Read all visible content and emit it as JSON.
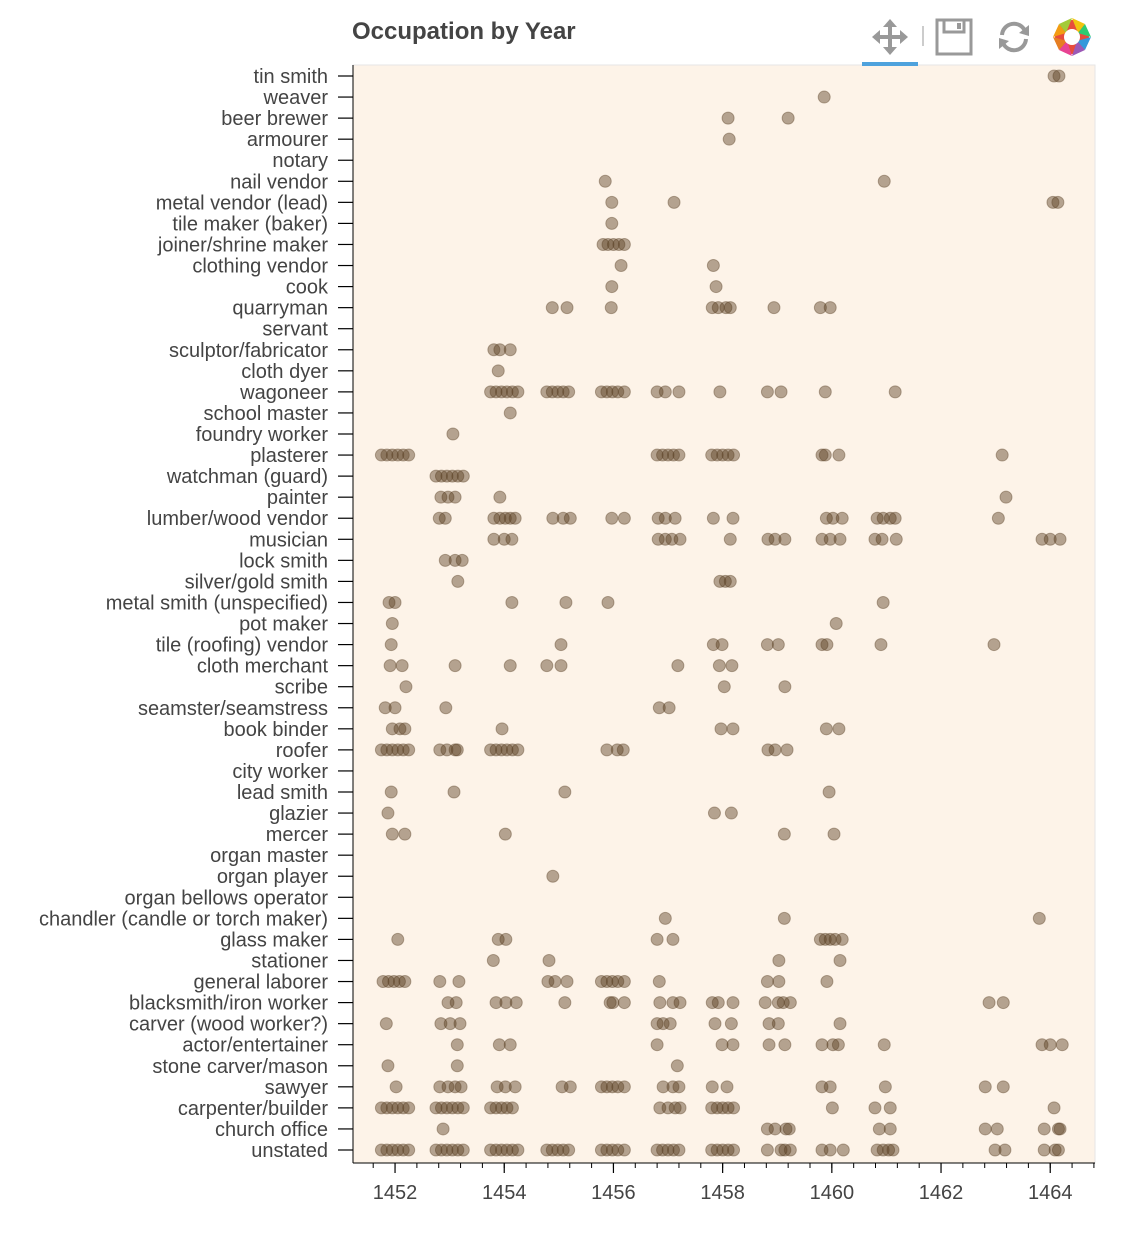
{
  "chart_data": {
    "type": "scatter",
    "title": "Occupation by Year",
    "xlabel": "",
    "ylabel": "",
    "xlim": [
      1451.23,
      1464.82
    ],
    "xticks": [
      1452,
      1454,
      1456,
      1458,
      1460,
      1462,
      1464
    ],
    "grid": false,
    "background_color": "#fdf3e8",
    "point_color": "#5a4024",
    "point_alpha": 0.45,
    "categories": [
      "tin smith",
      "weaver",
      "beer brewer",
      "armourer",
      "notary",
      "nail vendor",
      "metal vendor (lead)",
      "tile maker (baker)",
      "joiner/shrine maker",
      "clothing vendor",
      "cook",
      "quarryman",
      "servant",
      "sculptor/fabricator",
      "cloth dyer",
      "wagoneer",
      "school master",
      "foundry worker",
      "plasterer",
      "watchman (guard)",
      "painter",
      "lumber/wood vendor",
      "musician",
      "lock smith",
      "silver/gold smith",
      "metal smith (unspecified)",
      "pot maker",
      "tile (roofing) vendor",
      "cloth merchant",
      "scribe",
      "seamster/seamstress",
      "book binder",
      "roofer",
      "city worker",
      "lead smith",
      "glazier",
      "mercer",
      "organ master",
      "organ player",
      "organ bellows operator",
      "chandler (candle or torch maker)",
      "glass maker",
      "stationer",
      "general laborer",
      "blacksmith/iron worker",
      "carver (wood worker?)",
      "actor/entertainer",
      "stone carver/mason",
      "sawyer",
      "carpenter/builder",
      "church office",
      "unstated"
    ],
    "points": {
      "tin smith": [
        1464.07,
        1464.16
      ],
      "weaver": [
        1459.86
      ],
      "beer brewer": [
        1458.1,
        1459.2
      ],
      "armourer": [
        1458.12
      ],
      "notary": [],
      "nail vendor": [
        1455.85,
        1460.96
      ],
      "metal vendor (lead)": [
        1455.97,
        1457.11,
        1464.05,
        1464.14
      ],
      "tile maker (baker)": [
        1455.97
      ],
      "joiner/shrine maker": [
        1455.81,
        1455.9,
        1456.0,
        1456.1,
        1456.2
      ],
      "clothing vendor": [
        1456.14,
        1457.83
      ],
      "cook": [
        1455.97,
        1457.88
      ],
      "quarryman": [
        1454.88,
        1455.15,
        1455.96,
        1457.81,
        1457.92,
        1458.06,
        1458.14,
        1458.94,
        1459.79,
        1459.97
      ],
      "servant": [],
      "sculptor/fabricator": [
        1453.81,
        1453.92,
        1454.11
      ],
      "cloth dyer": [
        1453.89
      ],
      "wagoneer": [
        1453.75,
        1453.85,
        1453.95,
        1454.05,
        1454.15,
        1454.25,
        1454.78,
        1454.88,
        1454.98,
        1455.08,
        1455.18,
        1455.78,
        1455.88,
        1455.98,
        1456.08,
        1456.2,
        1456.8,
        1456.95,
        1457.2,
        1457.95,
        1458.82,
        1459.07,
        1459.88,
        1461.16
      ],
      "school master": [
        1454.11
      ],
      "foundry worker": [
        1453.06
      ],
      "plasterer": [
        1451.75,
        1451.85,
        1451.95,
        1452.05,
        1452.15,
        1452.25,
        1456.8,
        1456.9,
        1457.0,
        1457.1,
        1457.2,
        1457.8,
        1457.9,
        1458.0,
        1458.1,
        1458.2,
        1459.82,
        1459.88,
        1460.13,
        1463.12
      ],
      "watchman (guard)": [
        1452.75,
        1452.85,
        1452.95,
        1453.05,
        1453.15,
        1453.25
      ],
      "painter": [
        1452.84,
        1452.97,
        1453.1,
        1453.92,
        1463.19
      ],
      "lumber/wood vendor": [
        1452.81,
        1452.92,
        1453.81,
        1453.92,
        1454.02,
        1454.11,
        1454.2,
        1454.89,
        1455.08,
        1455.21,
        1455.97,
        1456.2,
        1456.82,
        1456.95,
        1457.13,
        1457.83,
        1458.19,
        1459.9,
        1460.02,
        1460.19,
        1460.83,
        1460.94,
        1461.07,
        1461.16,
        1463.05
      ],
      "musician": [
        1453.81,
        1454.0,
        1454.14,
        1456.82,
        1456.95,
        1457.07,
        1457.22,
        1458.14,
        1458.83,
        1458.96,
        1459.14,
        1459.82,
        1459.97,
        1460.15,
        1460.79,
        1460.92,
        1461.18,
        1463.85,
        1464.0,
        1464.18
      ],
      "lock smith": [
        1452.92,
        1453.1,
        1453.23
      ],
      "silver/gold smith": [
        1453.15,
        1457.95,
        1458.05,
        1458.14
      ],
      "metal smith (unspecified)": [
        1451.89,
        1452.0,
        1454.14,
        1455.13,
        1455.9,
        1460.94
      ],
      "pot maker": [
        1451.95,
        1460.08
      ],
      "tile (roofing) vendor": [
        1451.93,
        1455.04,
        1457.83,
        1457.99,
        1458.82,
        1459.02,
        1459.82,
        1459.91,
        1460.9,
        1462.97
      ],
      "cloth merchant": [
        1451.91,
        1452.13,
        1453.1,
        1454.11,
        1454.78,
        1455.04,
        1457.18,
        1457.94,
        1458.17
      ],
      "scribe": [
        1452.2,
        1458.03,
        1459.14
      ],
      "seamster/seamstress": [
        1451.82,
        1452.0,
        1452.93,
        1456.84,
        1457.02
      ],
      "book binder": [
        1451.95,
        1452.09,
        1452.18,
        1453.96,
        1457.97,
        1458.19,
        1459.9,
        1460.13
      ],
      "roofer": [
        1451.75,
        1451.85,
        1451.95,
        1452.05,
        1452.15,
        1452.25,
        1452.82,
        1452.95,
        1453.1,
        1453.14,
        1453.75,
        1453.85,
        1453.95,
        1454.05,
        1454.15,
        1454.25,
        1455.88,
        1456.07,
        1456.18,
        1458.83,
        1458.96,
        1459.18
      ],
      "city worker": [],
      "lead smith": [
        1451.93,
        1453.08,
        1455.11,
        1459.95
      ],
      "glazier": [
        1451.87,
        1457.85,
        1458.16
      ],
      "mercer": [
        1451.95,
        1452.18,
        1454.02,
        1459.13,
        1460.04
      ],
      "organ master": [],
      "organ player": [
        1454.89
      ],
      "organ bellows operator": [],
      "chandler (candle or torch maker)": [
        1456.95,
        1459.13,
        1463.8
      ],
      "glass maker": [
        1452.05,
        1453.89,
        1454.03,
        1456.8,
        1457.09,
        1459.79,
        1459.88,
        1459.97,
        1460.06,
        1460.19
      ],
      "stationer": [
        1453.8,
        1454.82,
        1459.03,
        1460.15
      ],
      "general laborer": [
        1451.78,
        1451.88,
        1451.98,
        1452.08,
        1452.18,
        1452.82,
        1453.17,
        1454.8,
        1454.93,
        1455.15,
        1455.78,
        1455.88,
        1455.98,
        1456.08,
        1456.2,
        1456.84,
        1458.82,
        1459.03,
        1459.91
      ],
      "blacksmith/iron worker": [
        1452.97,
        1453.12,
        1453.85,
        1454.03,
        1454.22,
        1455.11,
        1455.94,
        1455.99,
        1456.2,
        1456.85,
        1457.09,
        1457.22,
        1457.81,
        1457.92,
        1458.19,
        1458.78,
        1459.02,
        1459.11,
        1459.24,
        1462.88,
        1463.14
      ],
      "carver (wood worker?)": [
        1451.84,
        1452.84,
        1453.01,
        1453.19,
        1456.8,
        1456.91,
        1457.04,
        1457.86,
        1458.16,
        1458.85,
        1459.02,
        1460.15
      ],
      "actor/entertainer": [
        1453.14,
        1453.91,
        1454.11,
        1456.8,
        1457.99,
        1458.19,
        1458.85,
        1459.14,
        1459.82,
        1460.02,
        1460.12,
        1460.96,
        1463.85,
        1464.0,
        1464.22
      ],
      "stone carver/mason": [
        1451.87,
        1453.14,
        1457.17
      ],
      "sawyer": [
        1452.02,
        1452.82,
        1452.97,
        1453.1,
        1453.21,
        1453.87,
        1454.02,
        1454.2,
        1455.06,
        1455.21,
        1455.78,
        1455.88,
        1455.98,
        1456.08,
        1456.2,
        1456.91,
        1457.09,
        1457.2,
        1457.81,
        1458.08,
        1459.82,
        1459.97,
        1460.98,
        1462.81,
        1463.14
      ],
      "carpenter/builder": [
        1451.75,
        1451.85,
        1451.95,
        1452.05,
        1452.15,
        1452.25,
        1452.75,
        1452.85,
        1452.95,
        1453.05,
        1453.15,
        1453.25,
        1453.75,
        1453.85,
        1453.95,
        1454.05,
        1454.15,
        1456.85,
        1457.0,
        1457.13,
        1457.22,
        1457.8,
        1457.9,
        1458.0,
        1458.1,
        1458.2,
        1460.01,
        1460.79,
        1461.07,
        1464.07
      ],
      "church office": [
        1452.88,
        1458.82,
        1458.96,
        1459.16,
        1459.22,
        1460.87,
        1461.07,
        1462.81,
        1463.03,
        1463.89,
        1464.15,
        1464.18
      ],
      "unstated": [
        1451.75,
        1451.85,
        1451.95,
        1452.05,
        1452.15,
        1452.25,
        1452.75,
        1452.85,
        1452.95,
        1453.05,
        1453.15,
        1453.25,
        1453.75,
        1453.85,
        1453.95,
        1454.05,
        1454.15,
        1454.25,
        1454.78,
        1454.88,
        1454.98,
        1455.08,
        1455.18,
        1455.78,
        1455.88,
        1455.98,
        1456.08,
        1456.2,
        1456.8,
        1456.9,
        1457.0,
        1457.1,
        1457.2,
        1457.8,
        1457.9,
        1458.0,
        1458.1,
        1458.2,
        1458.82,
        1459.07,
        1459.14,
        1459.24,
        1459.82,
        1459.97,
        1460.21,
        1460.83,
        1460.94,
        1461.04,
        1461.12,
        1462.99,
        1463.17,
        1463.89,
        1464.09,
        1464.15
      ]
    }
  },
  "toolbar": {
    "tools": [
      {
        "name": "pan",
        "icon": "pan-icon",
        "active": true
      },
      {
        "name": "save",
        "icon": "save-icon",
        "active": false
      },
      {
        "name": "reset",
        "icon": "reset-icon",
        "active": false
      },
      {
        "name": "bokeh",
        "icon": "bokeh-logo",
        "active": false
      }
    ],
    "active_color": "#4ea2dd"
  }
}
